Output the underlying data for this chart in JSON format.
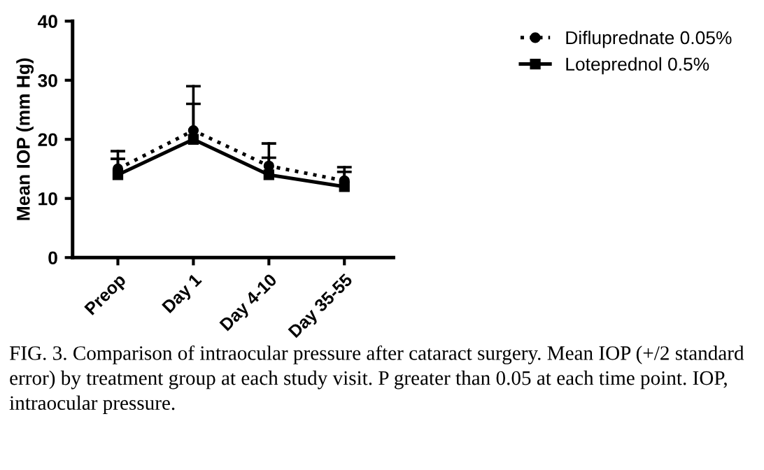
{
  "chart_data": {
    "type": "line",
    "categories": [
      "Preop",
      "Day 1",
      "Day 4-10",
      "Day 35-55"
    ],
    "ylabel": "Mean IOP (mm Hg)",
    "ylim": [
      0,
      40
    ],
    "yticks": [
      0,
      10,
      20,
      30,
      40
    ],
    "series": [
      {
        "name": "Difluprednate 0.05%",
        "color": "#000000",
        "values": [
          15,
          21.5,
          15.5,
          13
        ],
        "errors": [
          [
            15,
            18
          ],
          [
            21.5,
            29
          ],
          [
            15.5,
            19.3
          ],
          [
            13,
            15.3
          ]
        ],
        "marker": "circle",
        "line_style": "dotted"
      },
      {
        "name": "Loteprednol 0.5%",
        "color": "#000000",
        "values": [
          14,
          20,
          14,
          12
        ],
        "errors": [
          [
            14,
            16.7
          ],
          [
            20,
            26
          ],
          [
            14,
            16.9
          ],
          [
            12,
            14.5
          ]
        ],
        "marker": "square",
        "line_style": "solid"
      }
    ],
    "legend": "top right",
    "grid": false,
    "annotations": [
      "FIG. 3. Comparison of intraocular pressure after cataract surgery. Mean IOP (+/2 standard error) by treatment group at each study visit. P greater than 0.05 at each time point. IOP, intraocular pressure."
    ]
  }
}
